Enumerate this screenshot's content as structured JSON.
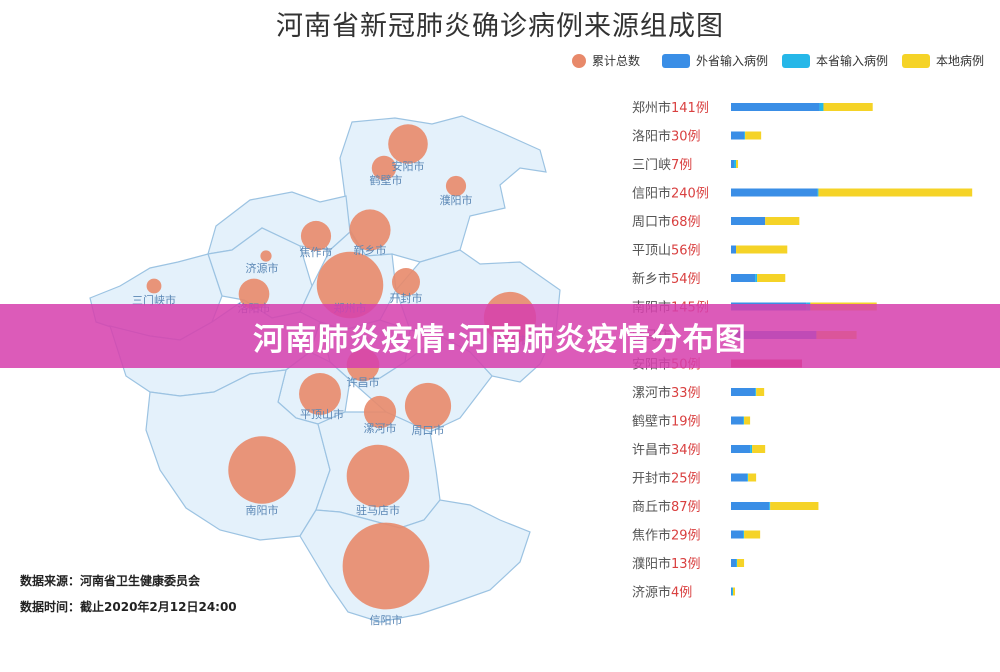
{
  "title": "河南省新冠肺炎确诊病例来源组成图",
  "banner": "河南肺炎疫情:河南肺炎疫情分布图",
  "source_label": "数据来源：",
  "source_value": "河南省卫生健康委员会",
  "time_label": "数据时间：",
  "time_value": "截止2020年2月12日24:00",
  "legend": [
    {
      "label": "累计总数",
      "color": "#e8896a",
      "shape": "circle"
    },
    {
      "label": "外省输入病例",
      "color": "#3a8ee6",
      "shape": "rect"
    },
    {
      "label": "本省输入病例",
      "color": "#26b7e8",
      "shape": "rect"
    },
    {
      "label": "本地病例",
      "color": "#f5d327",
      "shape": "rect"
    }
  ],
  "colors": {
    "total": "#e8896a",
    "external": "#3a8ee6",
    "province": "#26b7e8",
    "local": "#f5d327",
    "count": "#d94040",
    "name": "#555555",
    "map_fill": "#e4f1fb",
    "map_stroke": "#9cc3e2"
  },
  "chart_data": [
    {
      "type": "bar",
      "orientation": "horizontal",
      "stacked": true,
      "categories": [
        "郑州市",
        "洛阳市",
        "三门峡",
        "信阳市",
        "周口市",
        "平顶山",
        "新乡市",
        "南阳市",
        "驻马店",
        "安阳市",
        "漯河市",
        "鹤壁市",
        "许昌市",
        "开封市",
        "商丘市",
        "焦作市",
        "濮阳市",
        "济源市"
      ],
      "category_suffix": [
        "市",
        "市",
        "",
        "市",
        "市",
        "山",
        "市",
        "市",
        "",
        "市",
        "市",
        "市",
        "市",
        "市",
        "市",
        "市",
        "市",
        "市"
      ],
      "totals_text": [
        "141例",
        "30例",
        "7例",
        "240例",
        "68例",
        "56例",
        "54例",
        "145例",
        "",
        "50例",
        "33例",
        "19例",
        "34例",
        "25例",
        "87例",
        "29例",
        "13例",
        "4例"
      ],
      "series": [
        {
          "name": "外省输入病例",
          "values": [
            88,
            13,
            3,
            86,
            34,
            5,
            24,
            75,
            85,
            0,
            24,
            12,
            19,
            16,
            38,
            12,
            5,
            1
          ]
        },
        {
          "name": "本省输入病例",
          "values": [
            4,
            1,
            2,
            1,
            0,
            0,
            2,
            4,
            0,
            0,
            1,
            1,
            2,
            1,
            1,
            1,
            1,
            1
          ]
        },
        {
          "name": "本地病例",
          "values": [
            49,
            16,
            2,
            153,
            34,
            51,
            28,
            66,
            40,
            0,
            8,
            6,
            13,
            8,
            48,
            16,
            7,
            2
          ]
        }
      ],
      "overlay_values": {
        "安阳市": 50,
        "驻马店": 125
      }
    },
    {
      "type": "scatter",
      "subtype": "bubble-map",
      "series": [
        {
          "name": "累计总数",
          "points": [
            {
              "name": "安阳市",
              "value": 50
            },
            {
              "name": "鹤壁市",
              "value": 19
            },
            {
              "name": "濮阳市",
              "value": 13
            },
            {
              "name": "焦作市",
              "value": 29
            },
            {
              "name": "新乡市",
              "value": 54
            },
            {
              "name": "济源市",
              "value": 4
            },
            {
              "name": "三门峡市",
              "value": 7
            },
            {
              "name": "洛阳市",
              "value": 30
            },
            {
              "name": "郑州市",
              "value": 141
            },
            {
              "name": "开封市",
              "value": 25
            },
            {
              "name": "商丘市",
              "value": 87
            },
            {
              "name": "许昌市",
              "value": 34
            },
            {
              "name": "平顶山市",
              "value": 56
            },
            {
              "name": "漯河市",
              "value": 33
            },
            {
              "name": "周口市",
              "value": 68
            },
            {
              "name": "南阳市",
              "value": 145
            },
            {
              "name": "驻马店市",
              "value": 125
            },
            {
              "name": "信阳市",
              "value": 240
            }
          ]
        }
      ]
    }
  ]
}
